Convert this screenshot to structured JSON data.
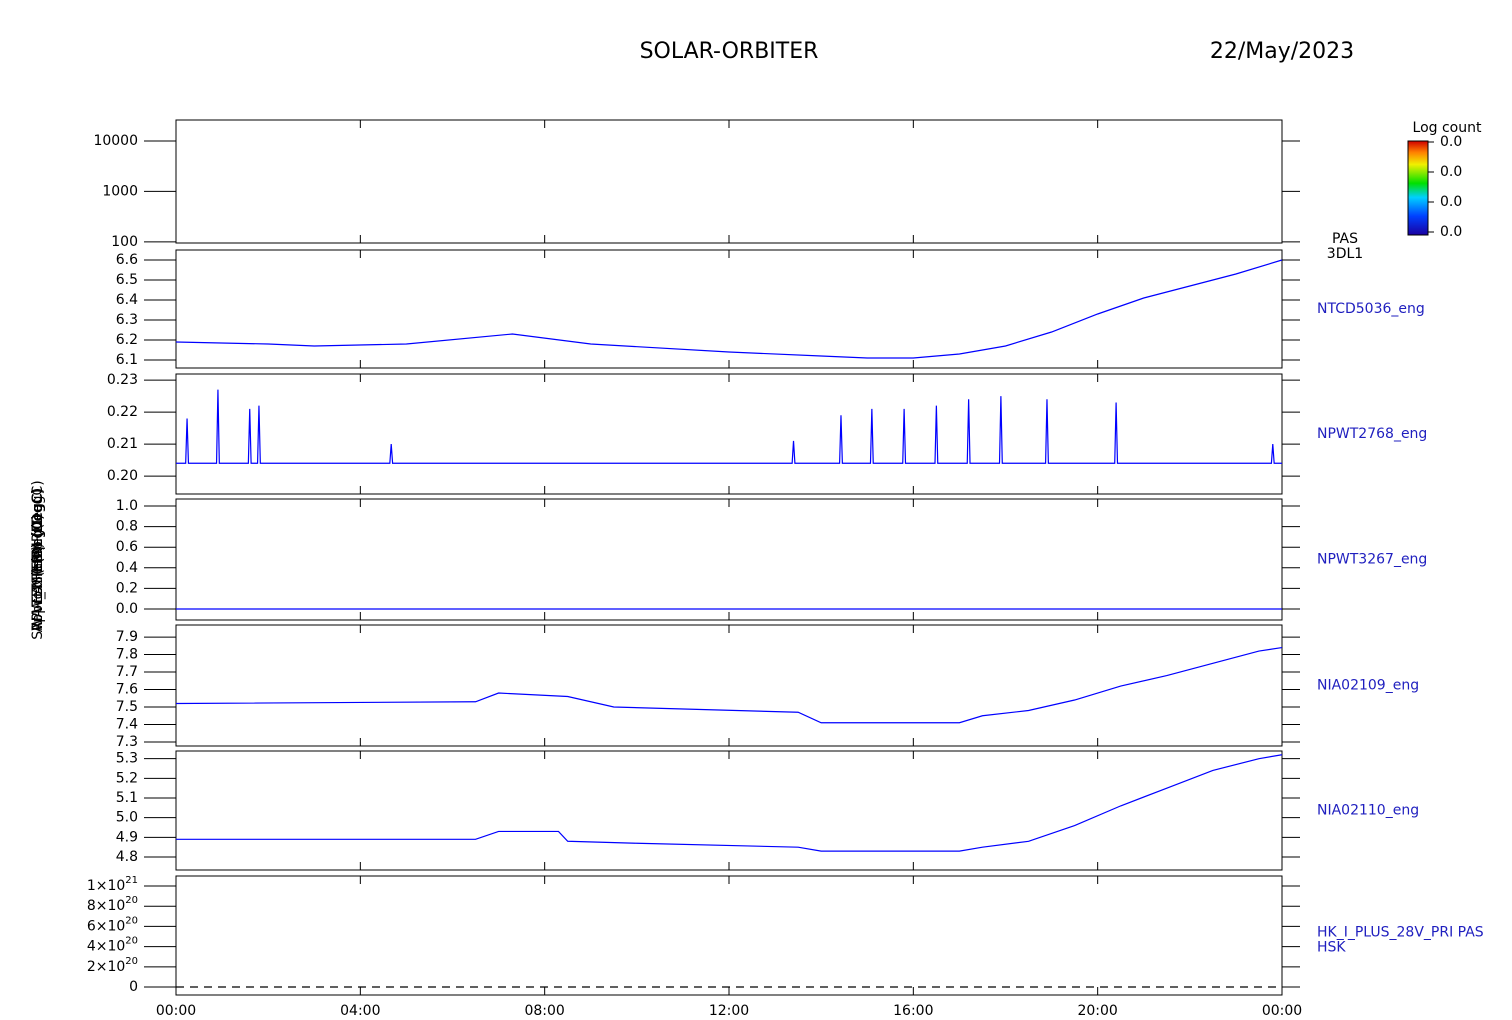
{
  "header": {
    "title": "SOLAR-ORBITER",
    "date": "22/May/2023"
  },
  "chart_data": [
    {
      "type": "spectrogram",
      "ylabel": "(eV)",
      "ylog": true,
      "xlim": [
        0,
        24
      ],
      "ylim": [
        95,
        26000
      ],
      "yticks": [
        100,
        1000,
        10000
      ],
      "right_label": [
        "PAS",
        "3DL1"
      ],
      "colorbar": {
        "title": "Log count",
        "tick_labels": [
          "0.0",
          "0.0",
          "0.0",
          "0.0"
        ]
      }
    },
    {
      "type": "line",
      "ylabel": "Approx Temp (DegC)",
      "xlim": [
        0,
        24
      ],
      "ylim": [
        6.06,
        6.65
      ],
      "yticks": [
        6.1,
        6.2,
        6.3,
        6.4,
        6.5,
        6.6
      ],
      "series": [
        {
          "name": "NTCD5036_eng",
          "color": "#0000ff",
          "x": [
            0,
            2,
            3,
            5,
            7.3,
            9,
            12,
            14,
            15,
            16,
            17,
            18,
            19,
            20,
            21,
            22,
            23,
            24
          ],
          "values": [
            6.19,
            6.18,
            6.17,
            6.18,
            6.23,
            6.18,
            6.14,
            6.12,
            6.11,
            6.11,
            6.13,
            6.17,
            6.24,
            6.33,
            6.41,
            6.47,
            6.53,
            6.6
          ]
        }
      ]
    },
    {
      "type": "line",
      "ylabel": "SWA-EAS TEMP (DegC)",
      "xlim": [
        0,
        24
      ],
      "ylim": [
        0.1944,
        0.2319
      ],
      "yticks": [
        {
          "value": 0.2,
          "label": "0.20"
        },
        0.21,
        0.22,
        0.23
      ],
      "series": [
        {
          "name": "NPWT2768_eng",
          "color": "#0000ff",
          "x": [
            0,
            0.21,
            0.24,
            0.27,
            0.88,
            0.91,
            0.94,
            1.57,
            1.6,
            1.63,
            1.77,
            1.8,
            1.83,
            4.64,
            4.67,
            4.7,
            13.37,
            13.4,
            13.43,
            14.4,
            14.43,
            14.46,
            15.07,
            15.1,
            15.13,
            15.77,
            15.8,
            15.83,
            16.47,
            16.5,
            16.53,
            17.17,
            17.2,
            17.23,
            17.87,
            17.9,
            17.93,
            18.87,
            18.9,
            18.93,
            20.37,
            20.4,
            20.43,
            23.77,
            23.8,
            23.83,
            24
          ],
          "values": [
            0.204,
            0.204,
            0.218,
            0.204,
            0.204,
            0.227,
            0.204,
            0.204,
            0.221,
            0.204,
            0.204,
            0.222,
            0.204,
            0.204,
            0.21,
            0.204,
            0.204,
            0.211,
            0.204,
            0.204,
            0.219,
            0.204,
            0.204,
            0.221,
            0.204,
            0.204,
            0.221,
            0.204,
            0.204,
            0.222,
            0.204,
            0.204,
            0.224,
            0.204,
            0.204,
            0.225,
            0.204,
            0.204,
            0.224,
            0.204,
            0.204,
            0.223,
            0.204,
            0.204,
            0.21,
            0.204,
            0.204
          ]
        }
      ]
    },
    {
      "type": "line",
      "ylabel": "RPW_THERM (DegC)",
      "xlim": [
        0,
        24
      ],
      "ylim": [
        -0.107,
        1.068
      ],
      "yticks": [
        {
          "value": 0,
          "label": "0.0"
        },
        0.2,
        0.4,
        0.6,
        0.8,
        {
          "value": 1,
          "label": "1.0"
        }
      ],
      "series": [
        {
          "name": "NPWT3267_eng",
          "color": "#0000ff",
          "x": [
            0,
            24
          ],
          "values": [
            0,
            0
          ]
        }
      ]
    },
    {
      "type": "line",
      "ylabel": "TEMP (DegC)",
      "xlim": [
        0,
        24
      ],
      "ylim": [
        7.277,
        7.969
      ],
      "yticks": [
        7.3,
        7.4,
        7.5,
        7.6,
        7.7,
        7.8,
        7.9
      ],
      "series": [
        {
          "name": "NIA02109_eng",
          "color": "#0000ff",
          "x": [
            0,
            6.5,
            7,
            8.5,
            9.5,
            13.5,
            14,
            17,
            17.5,
            18.5,
            19.5,
            20.5,
            21.5,
            22.5,
            23.5,
            24
          ],
          "values": [
            7.52,
            7.53,
            7.58,
            7.56,
            7.5,
            7.47,
            7.41,
            7.41,
            7.45,
            7.48,
            7.54,
            7.62,
            7.68,
            7.75,
            7.82,
            7.84
          ]
        }
      ]
    },
    {
      "type": "line",
      "ylabel": "TEMP (DegC)",
      "xlim": [
        0,
        24
      ],
      "ylim": [
        4.734,
        5.339
      ],
      "yticks": [
        4.8,
        4.9,
        {
          "value": 5,
          "label": "5.0"
        },
        5.1,
        5.2,
        5.3
      ],
      "series": [
        {
          "name": "NIA02110_eng",
          "color": "#0000ff",
          "x": [
            0,
            6.5,
            7,
            8.3,
            8.5,
            10,
            13.5,
            14,
            17,
            17.5,
            18.5,
            19.5,
            20.5,
            21.5,
            22.5,
            23.5,
            24
          ],
          "values": [
            4.89,
            4.89,
            4.93,
            4.93,
            4.88,
            4.87,
            4.85,
            4.83,
            4.83,
            4.85,
            4.88,
            4.96,
            5.06,
            5.15,
            5.24,
            5.3,
            5.32
          ]
        }
      ]
    },
    {
      "type": "line",
      "ylabel": "(mA)",
      "dashed": true,
      "xlim": [
        0,
        24
      ],
      "ylim": [
        -7.9e+19,
        1.099e+21
      ],
      "yticks": [
        0,
        {
          "value": 2e+20,
          "label": "2×10",
          "exp": "20"
        },
        {
          "value": 4e+20,
          "label": "4×10",
          "exp": "20"
        },
        {
          "value": 6e+20,
          "label": "6×10",
          "exp": "20"
        },
        {
          "value": 8e+20,
          "label": "8×10",
          "exp": "20"
        },
        {
          "value": 1e+21,
          "label": "1×10",
          "exp": "21"
        }
      ],
      "xticks": [
        {
          "value": 0,
          "label": "00:00"
        },
        {
          "value": 4,
          "label": "04:00"
        },
        {
          "value": 8,
          "label": "08:00"
        },
        {
          "value": 12,
          "label": "12:00"
        },
        {
          "value": 16,
          "label": "16:00"
        },
        {
          "value": 20,
          "label": "20:00"
        },
        {
          "value": 24,
          "label": "00:00"
        }
      ],
      "series": [
        {
          "name": "HK_I_PLUS_28V_PRI PAS",
          "subname": "HSK",
          "color": "#000000",
          "x": [
            0,
            24
          ],
          "values": [
            0,
            0
          ]
        }
      ]
    }
  ]
}
